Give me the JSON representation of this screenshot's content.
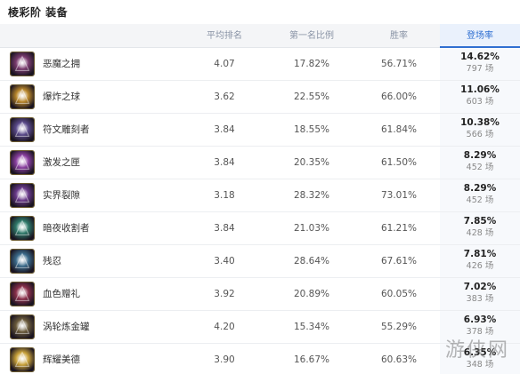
{
  "title": "棱彩阶 装备",
  "headers": {
    "avg": "平均排名",
    "first": "第一名比例",
    "win": "胜率",
    "pick": "登场率"
  },
  "rows": [
    {
      "name": "恶魔之拥",
      "avg": "4.07",
      "first": "17.82%",
      "win": "56.71%",
      "pick": "14.62%",
      "count": "797 场",
      "icon": "demon-embrace-icon",
      "color": "#7a3b6e"
    },
    {
      "name": "爆炸之球",
      "avg": "3.62",
      "first": "22.55%",
      "win": "66.00%",
      "pick": "11.06%",
      "count": "603 场",
      "icon": "explosive-orb-icon",
      "color": "#b8862a"
    },
    {
      "name": "符文雕刻者",
      "avg": "3.84",
      "first": "18.55%",
      "win": "61.84%",
      "pick": "10.38%",
      "count": "566 场",
      "icon": "rune-carver-icon",
      "color": "#5a4a8a"
    },
    {
      "name": "激发之匣",
      "avg": "3.84",
      "first": "20.35%",
      "win": "61.50%",
      "pick": "8.29%",
      "count": "452 场",
      "icon": "catalyst-box-icon",
      "color": "#8a3fa0"
    },
    {
      "name": "实界裂隙",
      "avg": "3.18",
      "first": "28.32%",
      "win": "73.01%",
      "pick": "8.29%",
      "count": "452 场",
      "icon": "reality-rift-icon",
      "color": "#6a3a8a"
    },
    {
      "name": "暗夜收割者",
      "avg": "3.84",
      "first": "21.03%",
      "win": "61.21%",
      "pick": "7.85%",
      "count": "428 场",
      "icon": "night-harvester-icon",
      "color": "#2f7a6a"
    },
    {
      "name": "残忍",
      "avg": "3.40",
      "first": "28.64%",
      "win": "67.61%",
      "pick": "7.81%",
      "count": "426 场",
      "icon": "cruelty-icon",
      "color": "#3a6a8a"
    },
    {
      "name": "血色赠礼",
      "avg": "3.92",
      "first": "20.89%",
      "win": "60.05%",
      "pick": "7.02%",
      "count": "383 场",
      "icon": "crimson-gift-icon",
      "color": "#8a2f4a"
    },
    {
      "name": "涡轮炼金罐",
      "avg": "4.20",
      "first": "15.34%",
      "win": "55.29%",
      "pick": "6.93%",
      "count": "378 场",
      "icon": "turbo-chemtank-icon",
      "color": "#6a5a3a"
    },
    {
      "name": "辉耀美德",
      "avg": "3.90",
      "first": "16.67%",
      "win": "60.63%",
      "pick": "6.35%",
      "count": "348 场",
      "icon": "radiant-virtue-icon",
      "color": "#c9a23a"
    }
  ],
  "watermark": "游侠网"
}
